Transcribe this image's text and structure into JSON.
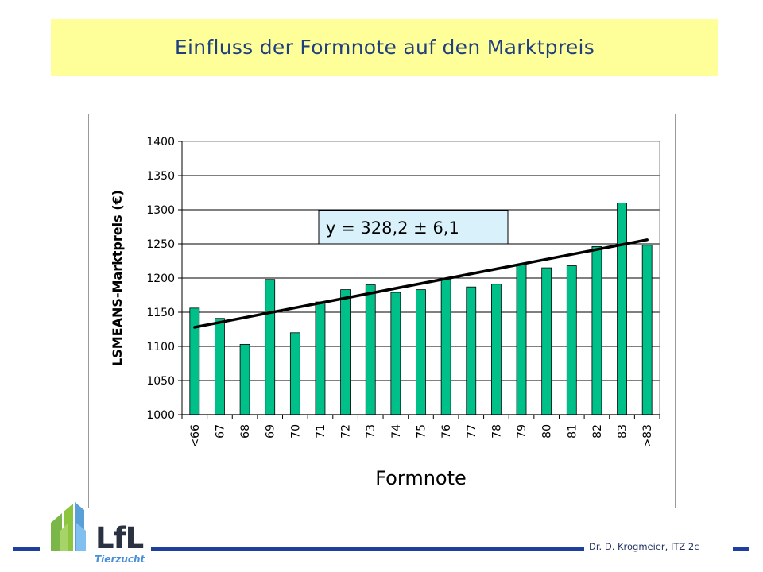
{
  "title": "Einfluss der Formnote auf den Marktpreis",
  "footer": {
    "credit": "Dr. D. Krogmeier, ITZ 2c"
  },
  "logo": {
    "name": "LfL",
    "subtitle": "Tierzucht",
    "icon": "lfl-leaf-house-logo"
  },
  "colors": {
    "title_band": "#ffff99",
    "bar": "#00c08a",
    "footer_line": "#1f3f9f",
    "title_text": "#1f3f7f"
  },
  "chart_data": {
    "type": "bar",
    "title": "",
    "xlabel": "Formnote",
    "ylabel": "LSMEANS-Marktpreis (€)",
    "categories": [
      "<66",
      "67",
      "68",
      "69",
      "70",
      "71",
      "72",
      "73",
      "74",
      "75",
      "76",
      "77",
      "78",
      "79",
      "80",
      "81",
      "82",
      "83",
      ">83"
    ],
    "values": [
      1156,
      1141,
      1103,
      1198,
      1120,
      1165,
      1183,
      1190,
      1179,
      1183,
      1200,
      1187,
      1191,
      1220,
      1215,
      1218,
      1246,
      1310,
      1248
    ],
    "ylim": [
      1000,
      1400
    ],
    "yticks": [
      1000,
      1050,
      1100,
      1150,
      1200,
      1250,
      1300,
      1350,
      1400
    ],
    "grid": true,
    "trendline": {
      "start": 1128,
      "end": 1256
    },
    "annotation": "y = 328,2 ± 6,1"
  }
}
